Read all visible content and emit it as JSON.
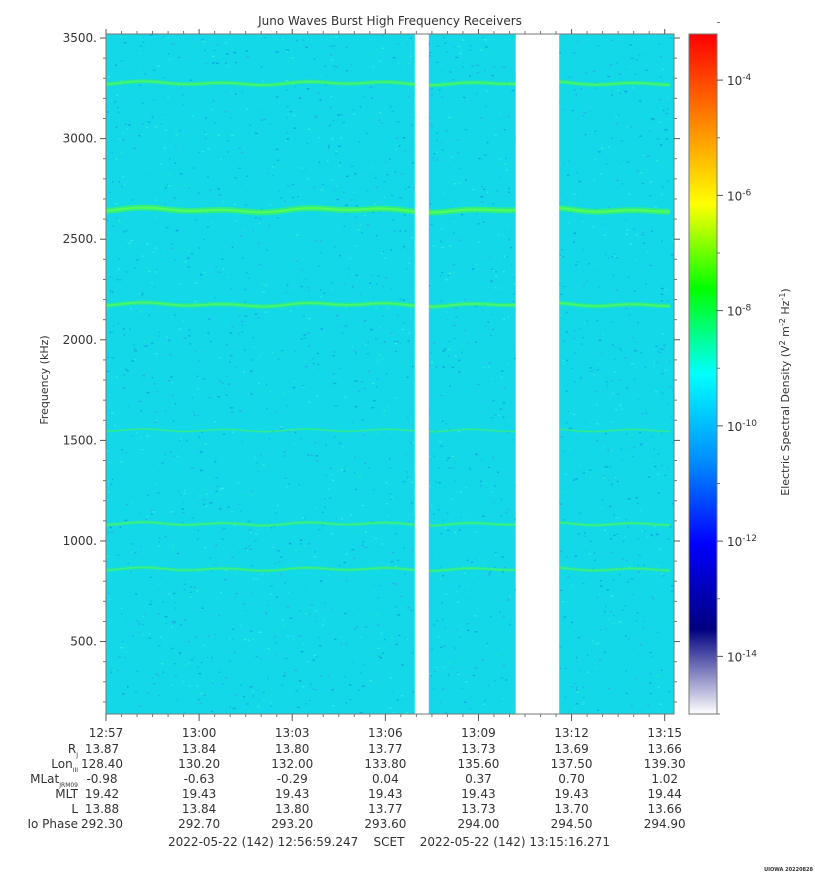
{
  "chart_data": {
    "type": "heatmap",
    "title": "Juno Waves Burst High Frequency Receivers",
    "ylabel": "Frequency (kHz)",
    "ylim": [
      140,
      3520
    ],
    "yticks": [
      "3500.",
      "3000.",
      "2500.",
      "2000.",
      "1500.",
      "1000.",
      "500."
    ],
    "ytick_values": [
      3500,
      3000,
      2500,
      2000,
      1500,
      1000,
      500
    ],
    "x_ticks": [
      "12:57",
      "13:00",
      "13:03",
      "13:06",
      "13:09",
      "13:12",
      "13:15"
    ],
    "x_tick_minutes": [
      0,
      3,
      6,
      9,
      12,
      15,
      18
    ],
    "x_range_minutes": [
      0,
      18.3
    ],
    "data_gaps_minutes": [
      [
        9.95,
        10.4
      ],
      [
        13.2,
        14.6
      ]
    ],
    "emission_lines_khz": [
      {
        "f": 3275,
        "strength": 0.55
      },
      {
        "f": 2645,
        "strength": 0.9
      },
      {
        "f": 2175,
        "strength": 0.6
      },
      {
        "f": 1550,
        "strength": 0.15
      },
      {
        "f": 1085,
        "strength": 0.35
      },
      {
        "f": 860,
        "strength": 0.35
      }
    ],
    "background_level": "1e-12",
    "colorbar": {
      "label": "Electric Spectral Density (V² m⁻² Hz⁻¹)",
      "label_base": "Electric Spectral Density (V",
      "label_mid1": " m",
      "label_mid2": " Hz",
      "label_end": ")",
      "sup2": "2",
      "supm2": "-2",
      "supm1": "-1",
      "log_min": -15,
      "log_max": -3.2,
      "ticks": [
        {
          "base": "10",
          "exp": "-4",
          "value": -4
        },
        {
          "base": "10",
          "exp": "-6",
          "value": -6
        },
        {
          "base": "10",
          "exp": "-8",
          "value": -8
        },
        {
          "base": "10",
          "exp": "-10",
          "value": -10
        },
        {
          "base": "10",
          "exp": "-12",
          "value": -12
        },
        {
          "base": "10",
          "exp": "-14",
          "value": -14
        }
      ],
      "colors": [
        "#ffffff",
        "#000080",
        "#0000ff",
        "#0090ff",
        "#00ffff",
        "#00ff00",
        "#ffff00",
        "#ff8000",
        "#ff0000"
      ]
    },
    "ephemeris": {
      "rows": [
        {
          "label": "R",
          "sub": "J",
          "values": [
            "13.87",
            "13.84",
            "13.80",
            "13.77",
            "13.73",
            "13.69",
            "13.66"
          ]
        },
        {
          "label": "Lon",
          "sub": "III",
          "values": [
            "128.40",
            "130.20",
            "132.00",
            "133.80",
            "135.60",
            "137.50",
            "139.30"
          ]
        },
        {
          "label": "MLat",
          "sub": "JRM09",
          "values": [
            "-0.98",
            "-0.63",
            "-0.29",
            "0.04",
            "0.37",
            "0.70",
            "1.02"
          ]
        },
        {
          "label": "MLT",
          "sub": "",
          "values": [
            "19.42",
            "19.43",
            "19.43",
            "19.43",
            "19.43",
            "19.43",
            "19.44"
          ]
        },
        {
          "label": "L",
          "sub": "",
          "values": [
            "13.88",
            "13.84",
            "13.80",
            "13.77",
            "13.73",
            "13.70",
            "13.66"
          ]
        },
        {
          "label": "Io Phase",
          "sub": "",
          "values": [
            "292.30",
            "292.70",
            "293.20",
            "293.60",
            "294.00",
            "294.50",
            "294.90"
          ]
        }
      ]
    },
    "time_range_text": "2022-05-22 (142) 12:56:59.247    SCET    2022-05-22 (142) 13:15:16.271",
    "credit": "UIOWA 20220828"
  }
}
